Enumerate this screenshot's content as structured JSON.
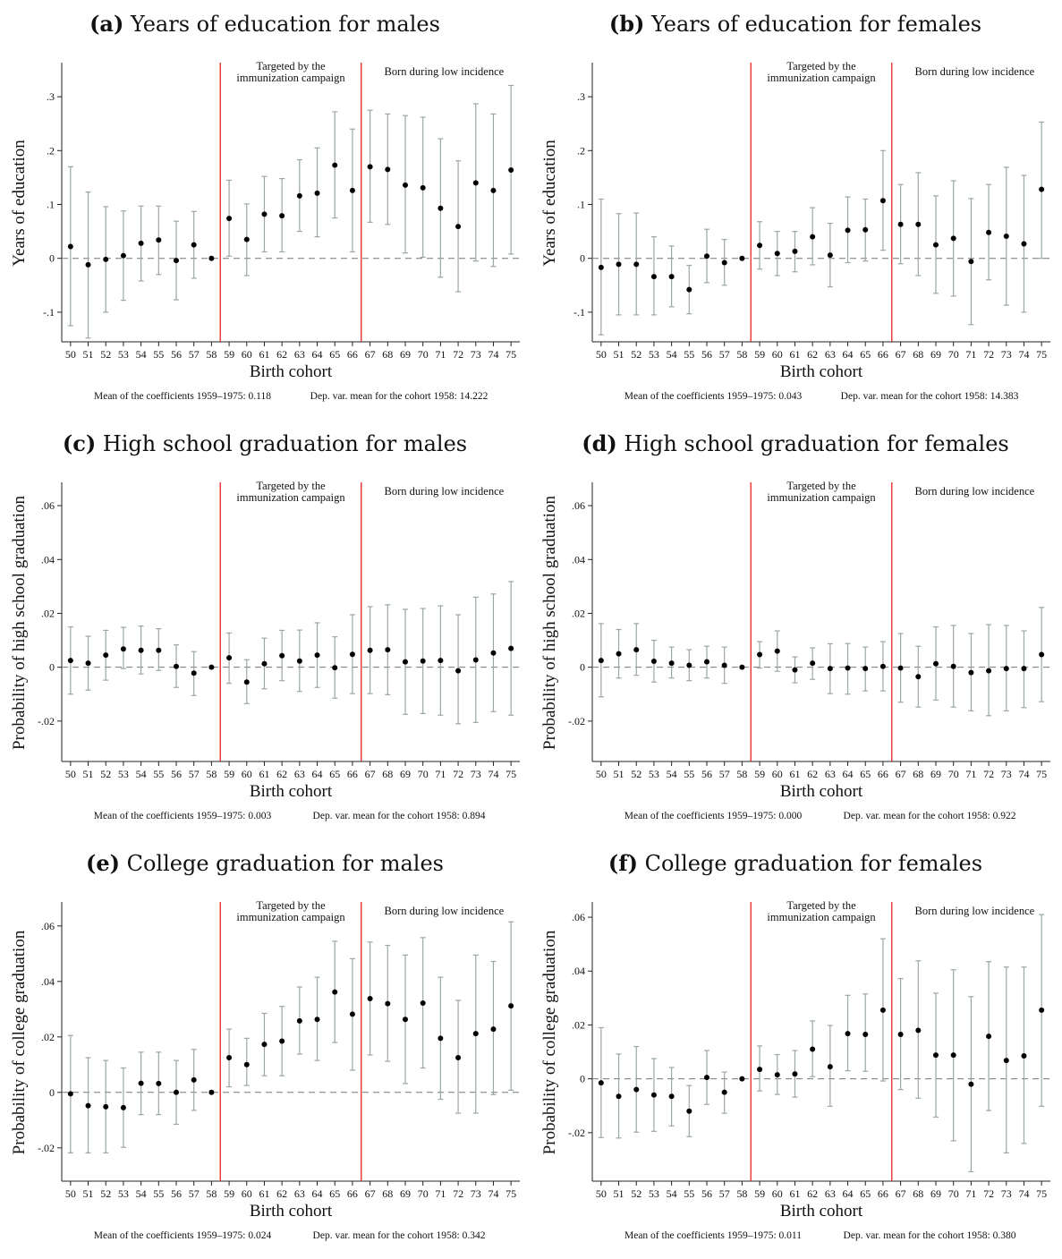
{
  "figure": {
    "xlabel": "Birth cohort",
    "region_labels": {
      "targeted_line1": "Targeted by the",
      "targeted_line2": "immunization campaign",
      "low_incidence": "Born during low incidence"
    },
    "colors": {
      "campaign_lines": "#e8231f",
      "error_bars": "#9aa7a5",
      "points": "#000000",
      "zero_line": "#777777"
    }
  },
  "chart_data": [
    {
      "type": "scatter",
      "panel_label": "(a)",
      "title": "Years of education for males",
      "ylabel": "Years of education",
      "x": [
        50,
        51,
        52,
        53,
        54,
        55,
        56,
        57,
        58,
        59,
        60,
        61,
        62,
        63,
        64,
        65,
        66,
        67,
        68,
        69,
        70,
        71,
        72,
        73,
        74,
        75
      ],
      "y": [
        0.022,
        -0.012,
        -0.002,
        0.005,
        0.028,
        0.034,
        -0.004,
        0.025,
        0.0,
        0.074,
        0.035,
        0.082,
        0.079,
        0.116,
        0.121,
        0.173,
        0.126,
        0.17,
        0.165,
        0.136,
        0.131,
        0.093,
        0.059,
        0.14,
        0.126,
        0.164
      ],
      "lower": [
        -0.125,
        -0.148,
        -0.1,
        -0.078,
        -0.042,
        -0.03,
        -0.077,
        -0.037,
        0.0,
        0.004,
        -0.032,
        0.012,
        0.012,
        0.05,
        0.04,
        0.075,
        0.012,
        0.067,
        0.063,
        0.01,
        0.002,
        -0.035,
        -0.062,
        -0.005,
        -0.015,
        0.008
      ],
      "upper": [
        0.17,
        0.123,
        0.096,
        0.088,
        0.097,
        0.097,
        0.069,
        0.087,
        0.0,
        0.145,
        0.101,
        0.152,
        0.148,
        0.183,
        0.205,
        0.272,
        0.24,
        0.275,
        0.268,
        0.265,
        0.262,
        0.222,
        0.181,
        0.287,
        0.268,
        0.321
      ],
      "ylim": [
        -0.155,
        0.36
      ],
      "yticks": [
        -0.1,
        0,
        0.1,
        0.2,
        0.3
      ],
      "ytick_labels": [
        "-.1",
        "0",
        ".1",
        ".2",
        ".3"
      ],
      "grid": false,
      "note_left": "Mean of the coefficients 1959–1975: 0.118",
      "note_right": "Dep. var. mean for the cohort 1958: 14.222"
    },
    {
      "type": "scatter",
      "panel_label": "(b)",
      "title": "Years of education for females",
      "ylabel": "Years of education",
      "x": [
        50,
        51,
        52,
        53,
        54,
        55,
        56,
        57,
        58,
        59,
        60,
        61,
        62,
        63,
        64,
        65,
        66,
        67,
        68,
        69,
        70,
        71,
        72,
        73,
        74,
        75
      ],
      "y": [
        -0.017,
        -0.011,
        -0.011,
        -0.034,
        -0.034,
        -0.058,
        0.004,
        -0.008,
        0.0,
        0.024,
        0.009,
        0.013,
        0.04,
        0.006,
        0.052,
        0.053,
        0.107,
        0.063,
        0.063,
        0.025,
        0.037,
        -0.006,
        0.048,
        0.041,
        0.027,
        0.128
      ],
      "lower": [
        -0.142,
        -0.105,
        -0.105,
        -0.105,
        -0.09,
        -0.103,
        -0.045,
        -0.05,
        0.0,
        -0.02,
        -0.032,
        -0.025,
        -0.012,
        -0.053,
        -0.008,
        -0.005,
        0.015,
        -0.01,
        -0.032,
        -0.065,
        -0.07,
        -0.123,
        -0.04,
        -0.087,
        -0.1,
        0.0
      ],
      "upper": [
        0.11,
        0.083,
        0.084,
        0.04,
        0.023,
        -0.013,
        0.054,
        0.035,
        0.0,
        0.068,
        0.05,
        0.05,
        0.094,
        0.065,
        0.114,
        0.11,
        0.2,
        0.137,
        0.159,
        0.116,
        0.144,
        0.111,
        0.137,
        0.169,
        0.154,
        0.253
      ],
      "ylim": [
        -0.155,
        0.36
      ],
      "yticks": [
        -0.1,
        0,
        0.1,
        0.2,
        0.3
      ],
      "ytick_labels": [
        "-.1",
        "0",
        ".1",
        ".2",
        ".3"
      ],
      "grid": false,
      "note_left": "Mean of the coefficients 1959–1975: 0.043",
      "note_right": "Dep. var. mean for the cohort 1958: 14.383"
    },
    {
      "type": "scatter",
      "panel_label": "(c)",
      "title": "High school graduation for males",
      "ylabel": "Probability of high school graduation",
      "x": [
        50,
        51,
        52,
        53,
        54,
        55,
        56,
        57,
        58,
        59,
        60,
        61,
        62,
        63,
        64,
        65,
        66,
        67,
        68,
        69,
        70,
        71,
        72,
        73,
        74,
        75
      ],
      "y": [
        0.0025,
        0.0015,
        0.0045,
        0.0068,
        0.0063,
        0.0063,
        0.0003,
        -0.0022,
        0.0,
        0.0035,
        -0.0055,
        0.0013,
        0.0043,
        0.0023,
        0.0045,
        -0.0002,
        0.0048,
        0.0063,
        0.0065,
        0.002,
        0.0023,
        0.0025,
        -0.0013,
        0.0027,
        0.0053,
        0.007
      ],
      "lower": [
        -0.01,
        -0.0085,
        -0.0048,
        -0.0005,
        -0.0025,
        -0.0012,
        -0.0075,
        -0.0105,
        0.0,
        -0.006,
        -0.0135,
        -0.008,
        -0.005,
        -0.009,
        -0.0075,
        -0.0115,
        -0.0098,
        -0.0098,
        -0.0102,
        -0.0175,
        -0.0172,
        -0.0178,
        -0.021,
        -0.0205,
        -0.0165,
        -0.0178
      ],
      "upper": [
        0.015,
        0.0115,
        0.0137,
        0.0148,
        0.0153,
        0.0143,
        0.0083,
        0.0058,
        0.0,
        0.0127,
        0.0028,
        0.0108,
        0.0137,
        0.0138,
        0.0165,
        0.0113,
        0.0195,
        0.0225,
        0.0232,
        0.0215,
        0.0218,
        0.0228,
        0.0195,
        0.026,
        0.0272,
        0.0318
      ],
      "ylim": [
        -0.035,
        0.068
      ],
      "yticks": [
        -0.02,
        0,
        0.02,
        0.04,
        0.06
      ],
      "ytick_labels": [
        "-.02",
        "0",
        ".02",
        ".04",
        ".06"
      ],
      "grid": false,
      "note_left": "Mean of the coefficients 1959–1975: 0.003",
      "note_right": "Dep. var. mean for the cohort 1958: 0.894"
    },
    {
      "type": "scatter",
      "panel_label": "(d)",
      "title": "High school graduation for females",
      "ylabel": "Probability of high school graduation",
      "x": [
        50,
        51,
        52,
        53,
        54,
        55,
        56,
        57,
        58,
        59,
        60,
        61,
        62,
        63,
        64,
        65,
        66,
        67,
        68,
        69,
        70,
        71,
        72,
        73,
        74,
        75
      ],
      "y": [
        0.0025,
        0.005,
        0.0065,
        0.0022,
        0.0015,
        0.0007,
        0.002,
        0.0007,
        0.0,
        0.0047,
        0.006,
        -0.001,
        0.0015,
        -0.0005,
        -0.0003,
        -0.0005,
        0.0003,
        -0.0003,
        -0.0035,
        0.0013,
        0.0003,
        -0.002,
        -0.0013,
        -0.0005,
        -0.0005,
        0.0047
      ],
      "lower": [
        -0.011,
        -0.004,
        -0.003,
        -0.0055,
        -0.004,
        -0.005,
        -0.004,
        -0.006,
        0.0,
        -0.0003,
        -0.0015,
        -0.0058,
        -0.0045,
        -0.0098,
        -0.01,
        -0.0088,
        -0.0088,
        -0.013,
        -0.0148,
        -0.0122,
        -0.0148,
        -0.0162,
        -0.018,
        -0.0162,
        -0.015,
        -0.0128
      ],
      "upper": [
        0.0162,
        0.014,
        0.0162,
        0.01,
        0.0075,
        0.0065,
        0.0078,
        0.0075,
        0.0,
        0.0095,
        0.0135,
        0.0038,
        0.0072,
        0.0087,
        0.0088,
        0.0075,
        0.0095,
        0.0125,
        0.0078,
        0.015,
        0.0155,
        0.0125,
        0.0158,
        0.0155,
        0.0135,
        0.0222
      ],
      "ylim": [
        -0.035,
        0.068
      ],
      "yticks": [
        -0.02,
        0,
        0.02,
        0.04,
        0.06
      ],
      "ytick_labels": [
        "-.02",
        "0",
        ".02",
        ".04",
        ".06"
      ],
      "grid": false,
      "note_left": "Mean of the coefficients 1959–1975: 0.000",
      "note_right": "Dep. var. mean for the cohort 1958: 0.922"
    },
    {
      "type": "scatter",
      "panel_label": "(e)",
      "title": "College graduation for males",
      "ylabel": "Probability of college graduation",
      "x": [
        50,
        51,
        52,
        53,
        54,
        55,
        56,
        57,
        58,
        59,
        60,
        61,
        62,
        63,
        64,
        65,
        66,
        67,
        68,
        69,
        70,
        71,
        72,
        73,
        74,
        75
      ],
      "y": [
        -0.0005,
        -0.0048,
        -0.0052,
        -0.0055,
        0.0033,
        0.0032,
        0.0,
        0.0045,
        0.0,
        0.0125,
        0.01,
        0.0173,
        0.0185,
        0.0258,
        0.0263,
        0.0362,
        0.0282,
        0.0338,
        0.032,
        0.0263,
        0.0322,
        0.0195,
        0.0125,
        0.0212,
        0.0228,
        0.0312
      ],
      "lower": [
        -0.0218,
        -0.0218,
        -0.0218,
        -0.0198,
        -0.008,
        -0.008,
        -0.0115,
        -0.0065,
        0.0,
        0.002,
        0.0025,
        0.006,
        0.006,
        0.0138,
        0.0115,
        0.018,
        0.008,
        0.0135,
        0.0112,
        0.0032,
        0.0088,
        -0.0025,
        -0.0075,
        -0.0075,
        -0.0008,
        0.0008
      ],
      "upper": [
        0.0205,
        0.0125,
        0.0115,
        0.0088,
        0.0145,
        0.0145,
        0.0115,
        0.0155,
        0.0,
        0.0228,
        0.0195,
        0.0285,
        0.031,
        0.038,
        0.0415,
        0.0545,
        0.0482,
        0.0542,
        0.053,
        0.0495,
        0.0558,
        0.0415,
        0.0332,
        0.0495,
        0.0472,
        0.0615
      ],
      "ylim": [
        -0.032,
        0.068
      ],
      "yticks": [
        -0.02,
        0,
        0.02,
        0.04,
        0.06
      ],
      "ytick_labels": [
        "-.02",
        "0",
        ".02",
        ".04",
        ".06"
      ],
      "grid": false,
      "note_left": "Mean of the coefficients 1959–1975: 0.024",
      "note_right": "Dep. var. mean for the cohort 1958: 0.342"
    },
    {
      "type": "scatter",
      "panel_label": "(f)",
      "title": "College graduation for females",
      "ylabel": "Probability of college graduation",
      "x": [
        50,
        51,
        52,
        53,
        54,
        55,
        56,
        57,
        58,
        59,
        60,
        61,
        62,
        63,
        64,
        65,
        66,
        67,
        68,
        69,
        70,
        71,
        72,
        73,
        74,
        75
      ],
      "y": [
        -0.0015,
        -0.0065,
        -0.004,
        -0.006,
        -0.0065,
        -0.012,
        0.0005,
        -0.005,
        0.0,
        0.0035,
        0.0015,
        0.0018,
        0.011,
        0.0045,
        0.0168,
        0.0165,
        0.0255,
        0.0165,
        0.018,
        0.0088,
        0.0088,
        -0.002,
        0.0158,
        0.0068,
        0.0085,
        0.0255
      ],
      "lower": [
        -0.0218,
        -0.022,
        -0.0198,
        -0.0195,
        -0.0175,
        -0.0215,
        -0.0095,
        -0.0128,
        0.0,
        -0.0045,
        -0.0058,
        -0.0068,
        0.0008,
        -0.0102,
        0.003,
        0.0028,
        -0.0008,
        -0.004,
        -0.0072,
        -0.0142,
        -0.023,
        -0.0345,
        -0.0118,
        -0.0275,
        -0.024,
        -0.0102
      ],
      "upper": [
        0.019,
        0.0092,
        0.012,
        0.0075,
        0.0042,
        -0.0025,
        0.0105,
        0.0025,
        0.0,
        0.0122,
        0.009,
        0.0105,
        0.0215,
        0.0198,
        0.031,
        0.0315,
        0.052,
        0.0372,
        0.0438,
        0.0318,
        0.0405,
        0.0305,
        0.0435,
        0.0415,
        0.0415,
        0.061
      ],
      "ylim": [
        -0.038,
        0.065
      ],
      "yticks": [
        -0.02,
        0,
        0.02,
        0.04,
        0.06
      ],
      "ytick_labels": [
        "-.02",
        "0",
        ".02",
        ".04",
        ".06"
      ],
      "grid": false,
      "note_left": "Mean of the coefficients 1959–1975: 0.011",
      "note_right": "Dep. var. mean for the cohort 1958: 0.380"
    }
  ]
}
